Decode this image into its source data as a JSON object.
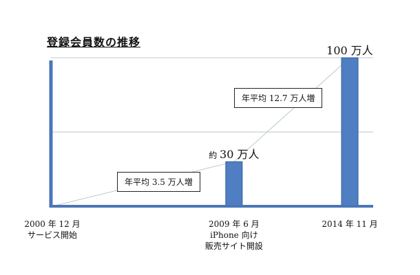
{
  "chart_data": {
    "type": "bar",
    "title": "登録会員数の推移",
    "categories": [
      [
        "2000 年 12 月",
        "サービス開始"
      ],
      [
        "2009 年 6 月",
        "iPhone 向け",
        "販売サイト開設"
      ],
      [
        "2014 年 11 月"
      ]
    ],
    "x_dates": [
      "2000-12",
      "2009-06",
      "2014-11"
    ],
    "values": [
      0,
      30,
      100
    ],
    "unit": "万人",
    "value_labels": [
      null,
      {
        "prefix": "約",
        "number": "30",
        "suffix": "万人"
      },
      {
        "prefix": "",
        "number": "100",
        "suffix": "万人"
      }
    ],
    "annotations": [
      "年平均 3.5 万人増",
      "年平均 12.7 万人増"
    ],
    "ylim": [
      0,
      100
    ],
    "grid": true,
    "colors": {
      "bar": "#4f7fc2",
      "bar_edge": "#2f5d9a",
      "axis": "#4a76b8",
      "guide": "#b9c9c9"
    }
  }
}
